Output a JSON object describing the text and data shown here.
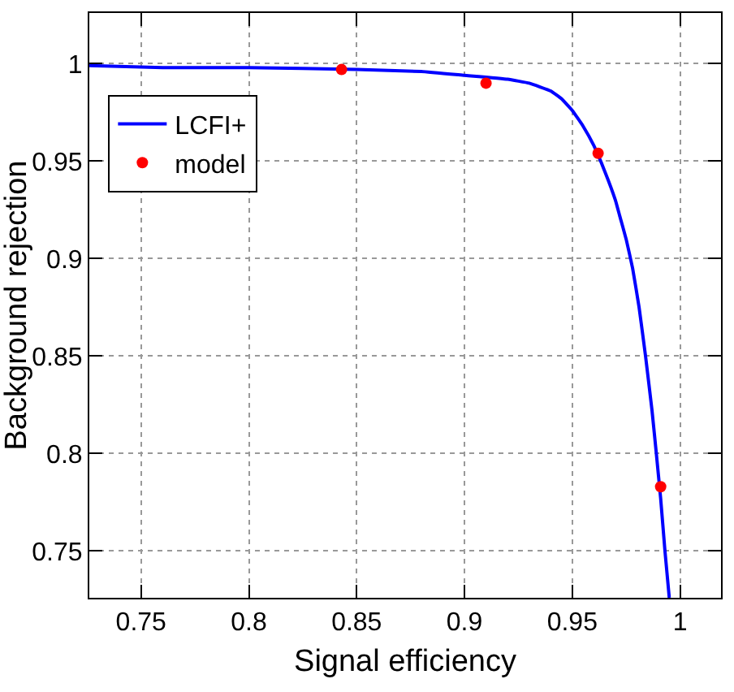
{
  "chart_data": {
    "type": "line",
    "xlabel": "Signal efficiency",
    "ylabel": "Background rejection",
    "xlim": [
      0.726,
      1.019
    ],
    "ylim": [
      0.726,
      1.026
    ],
    "xticks": [
      {
        "value": 0.75,
        "label": "0.75"
      },
      {
        "value": 0.8,
        "label": "0.8"
      },
      {
        "value": 0.85,
        "label": "0.85"
      },
      {
        "value": 0.9,
        "label": "0.9"
      },
      {
        "value": 0.95,
        "label": "0.95"
      },
      {
        "value": 1,
        "label": "1"
      }
    ],
    "yticks": [
      {
        "value": 0.75,
        "label": "0.75"
      },
      {
        "value": 0.8,
        "label": "0.8"
      },
      {
        "value": 0.85,
        "label": "0.85"
      },
      {
        "value": 0.9,
        "label": "0.9"
      },
      {
        "value": 0.95,
        "label": "0.95"
      },
      {
        "value": 1,
        "label": "1"
      }
    ],
    "grid": true,
    "legend": "top left",
    "series": [
      {
        "name": "LCFI+",
        "color": "#0000ff",
        "marker": "none",
        "x": [
          0.726,
          0.76,
          0.8,
          0.85,
          0.88,
          0.9,
          0.92,
          0.93,
          0.94,
          0.945,
          0.95,
          0.955,
          0.96,
          0.965,
          0.97,
          0.972,
          0.975,
          0.978,
          0.981,
          0.984,
          0.987,
          0.989,
          0.991,
          0.993,
          0.995
        ],
        "values": [
          0.999,
          0.998,
          0.998,
          0.997,
          0.996,
          0.994,
          0.992,
          0.99,
          0.986,
          0.982,
          0.976,
          0.968,
          0.958,
          0.945,
          0.93,
          0.922,
          0.91,
          0.895,
          0.875,
          0.85,
          0.822,
          0.8,
          0.777,
          0.75,
          0.726
        ]
      },
      {
        "name": "model",
        "type": "scatter",
        "color": "#ff0000",
        "marker": "circle",
        "x": [
          0.843,
          0.91,
          0.962,
          0.991
        ],
        "values": [
          0.997,
          0.99,
          0.954,
          0.783
        ]
      }
    ]
  }
}
